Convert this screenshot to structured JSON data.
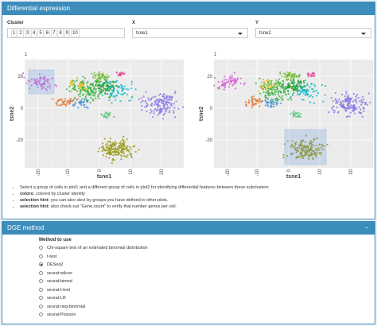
{
  "header": {
    "title": "Differential expression"
  },
  "controls": {
    "cluster_label": "Cluster",
    "clusters": [
      "1",
      "2",
      "3",
      "4",
      "5",
      "6",
      "7",
      "8",
      "9",
      "10"
    ],
    "x_label": "X",
    "x_value": "tsne1",
    "y_label": "Y",
    "y_value": "tsne2"
  },
  "plots": [
    {
      "title": "1",
      "xlabel": "tsne1",
      "ylabel": "tsne2",
      "xticks": [
        "-20",
        "-10",
        "0",
        "10",
        "20"
      ],
      "yticks": [
        "20",
        "0",
        "-20"
      ]
    },
    {
      "title": "1",
      "xlabel": "tsne1",
      "ylabel": "tsne2",
      "xticks": [
        "-20",
        "-10",
        "0",
        "10",
        "20"
      ],
      "yticks": [
        "20",
        "0",
        "-20"
      ]
    }
  ],
  "notes": [
    {
      "bold": "",
      "text": "Select a group of cells in plot1 and a different group of cells in plot2 for identifying differential features between these subclusters"
    },
    {
      "bold": "colors:",
      "text": " colored by cluster identity"
    },
    {
      "bold": "selection hint:",
      "text": " you can also slect by groups you have defined in other plots."
    },
    {
      "bold": "selection hint:",
      "text": " also check-out \"Gene.count\" to verify that number genes per cell."
    }
  ],
  "dge": {
    "title": "DGE method",
    "collapse": "−",
    "label": "Method to use",
    "options": [
      "Chi-square test of an estimated binomial distribution",
      "t-test",
      "DESeq2",
      "seurat:wilcox",
      "seurat:bimod",
      "seurat:t-test",
      "seurat:LR",
      "seurat:neg-binomial",
      "seurat:Poisson"
    ]
  }
}
